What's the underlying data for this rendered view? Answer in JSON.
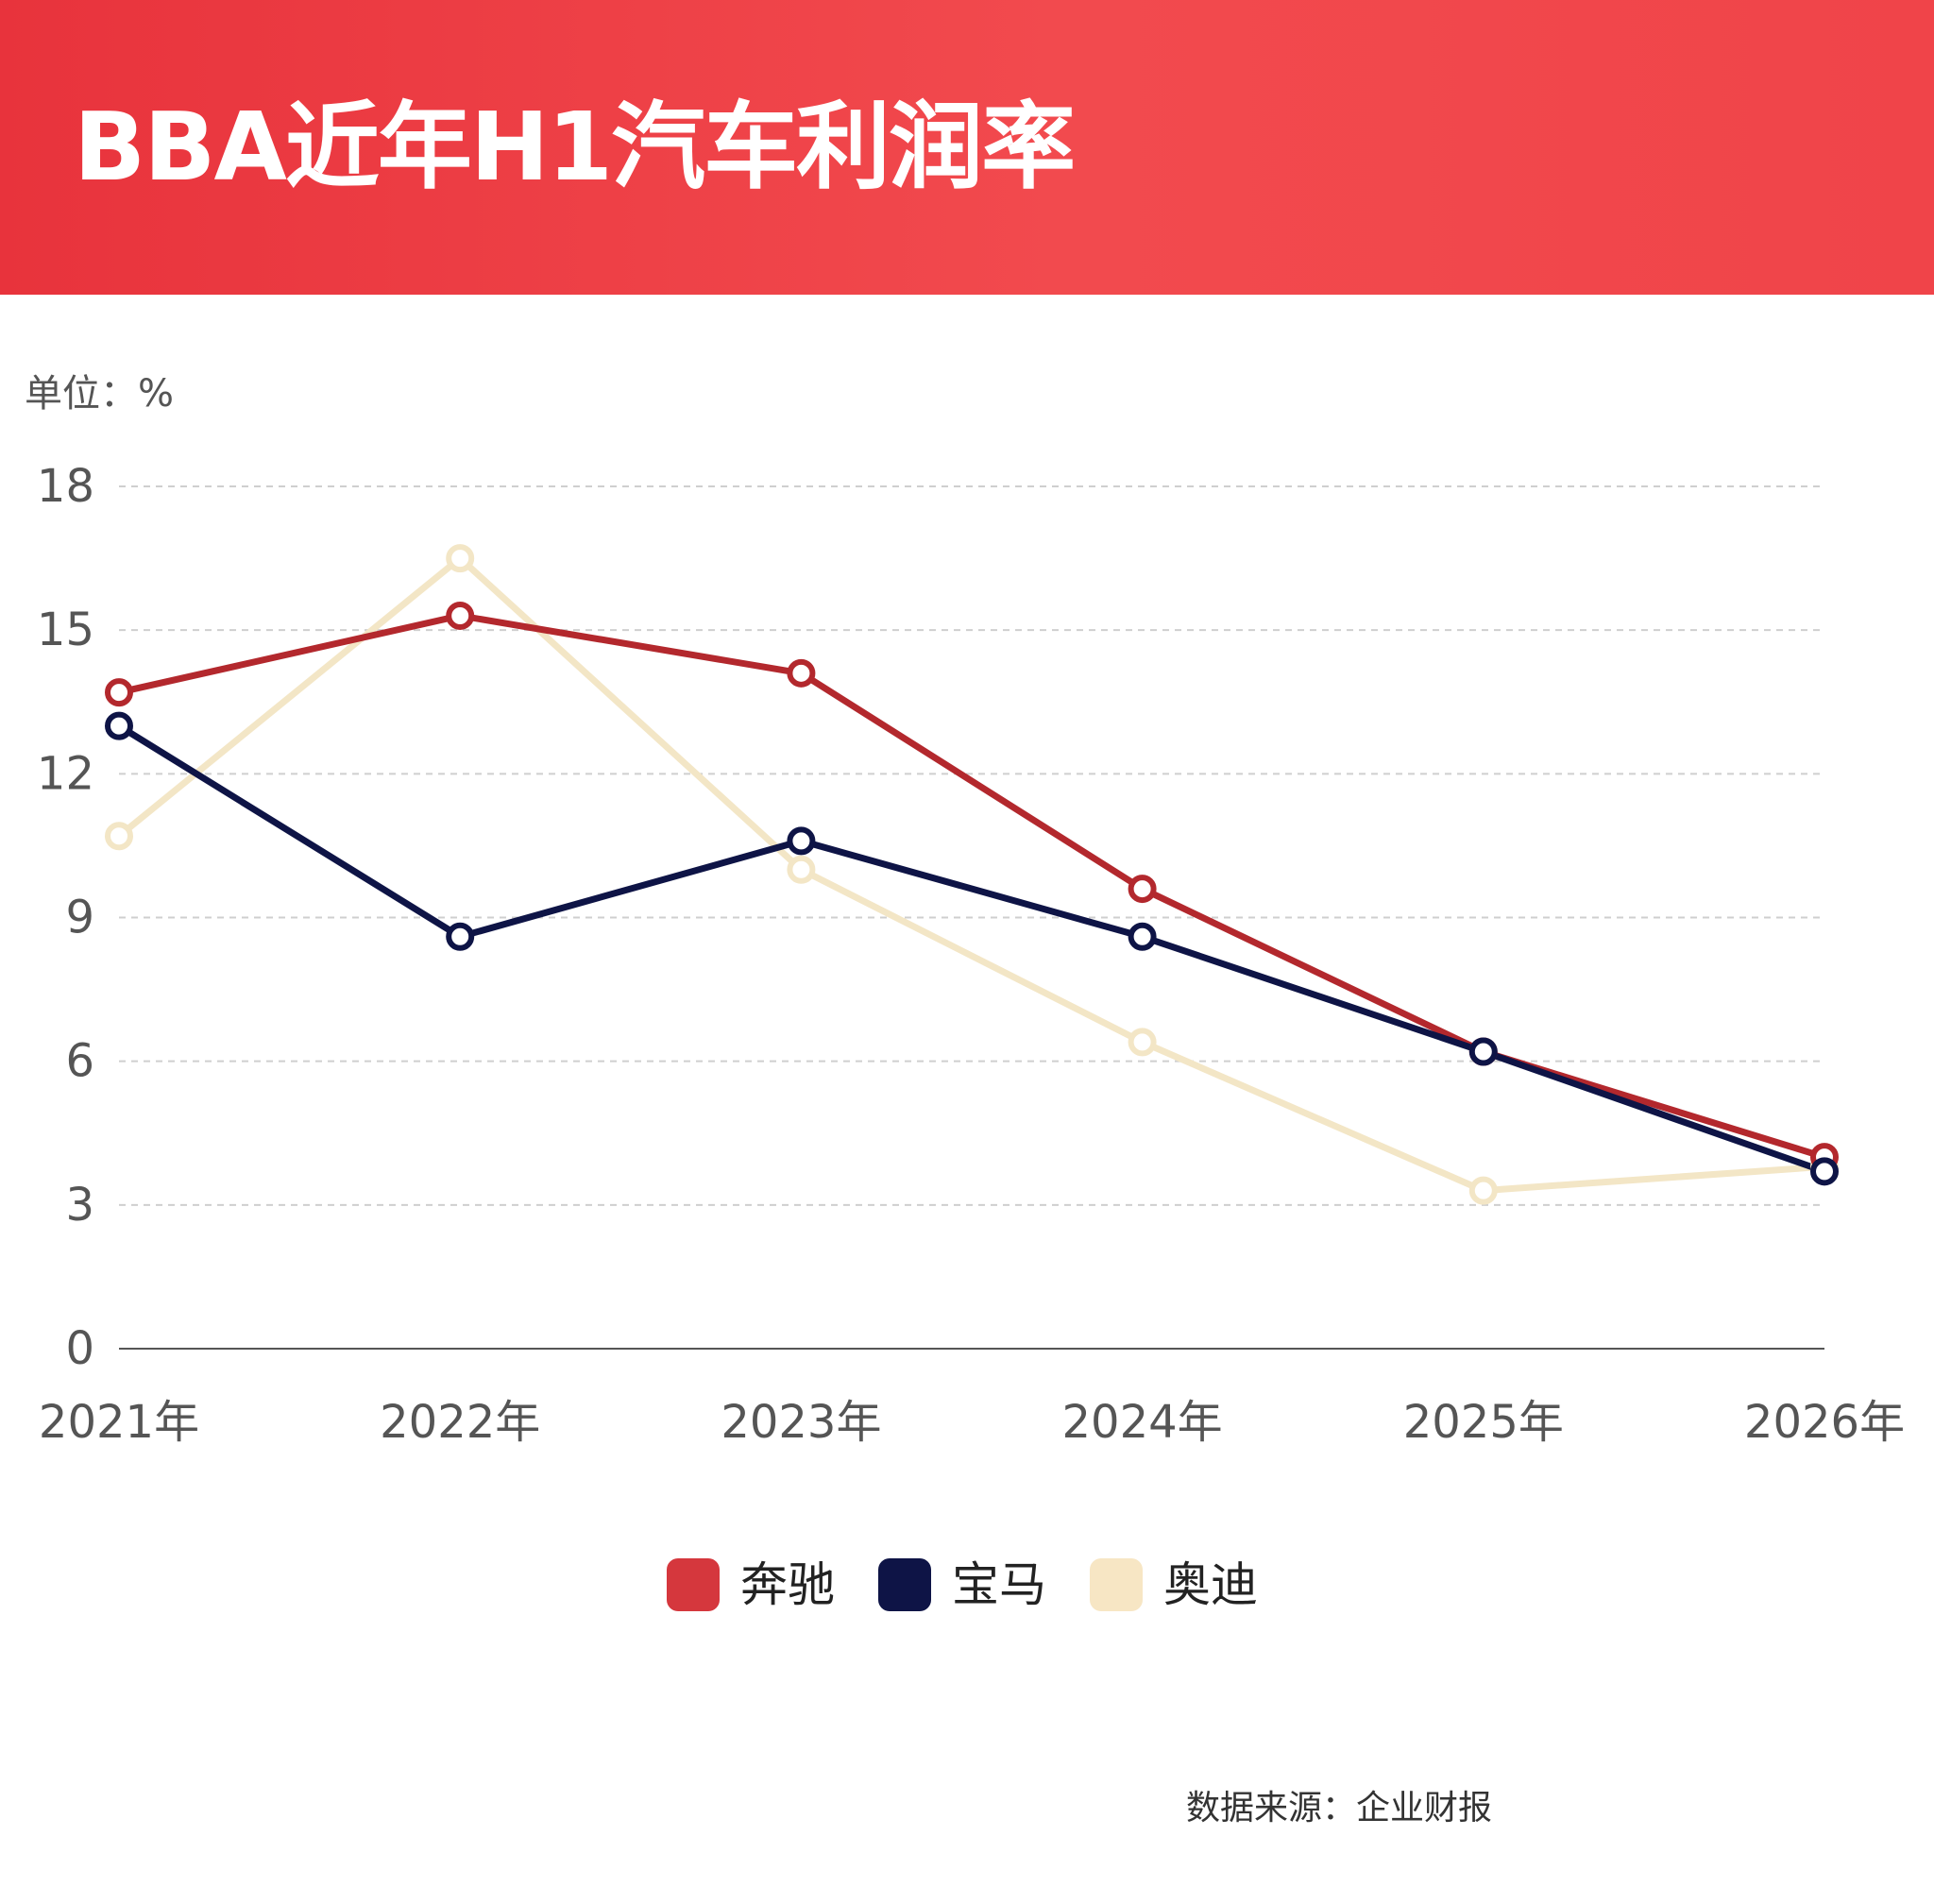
{
  "header": {
    "title": "BBA近年H1汽车利润率",
    "background_color": "#ee3f45"
  },
  "unit_label": "单位：%",
  "source_label": "数据来源：企业财报",
  "legend": [
    {
      "label": "奔驰",
      "color": "#d5373d"
    },
    {
      "label": "宝马",
      "color": "#0e1446"
    },
    {
      "label": "奥迪",
      "color": "#f7e6c4"
    }
  ],
  "chart_data": {
    "type": "line",
    "title": "BBA近年H1汽车利润率",
    "ylabel": "单位：%",
    "categories": [
      "2021年",
      "2022年",
      "2023年",
      "2024年",
      "2025年",
      "2026年"
    ],
    "ylim": [
      0,
      18
    ],
    "yticks": [
      0,
      3,
      6,
      9,
      12,
      15,
      18
    ],
    "grid": true,
    "legend_position": "bottom-center",
    "series": [
      {
        "name": "奔驰",
        "color": "#b3282d",
        "values": [
          13.7,
          15.3,
          14.1,
          9.6,
          6.2,
          4.0
        ]
      },
      {
        "name": "宝马",
        "color": "#0e1446",
        "values": [
          13.0,
          8.6,
          10.6,
          8.6,
          6.2,
          3.7
        ]
      },
      {
        "name": "奥迪",
        "color": "#f3e6c6",
        "values": [
          10.7,
          16.5,
          10.0,
          6.4,
          3.3,
          3.8
        ]
      }
    ]
  }
}
